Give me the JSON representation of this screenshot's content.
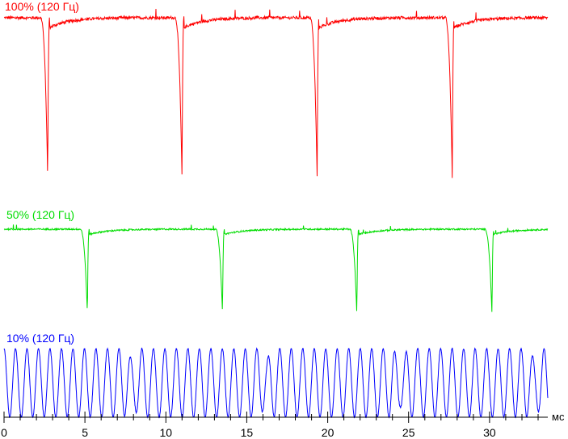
{
  "chart_data": {
    "type": "line",
    "xlabel": "мс",
    "xlim": [
      0,
      33.6
    ],
    "x_ticks": [
      0,
      5,
      10,
      15,
      20,
      25,
      30
    ],
    "grid": false,
    "legend": "none",
    "series": [
      {
        "name": "100% (120 Гц)",
        "color": "#ff0000",
        "baseline": 100,
        "min": 2,
        "pulse_times": [
          2.7,
          11.0,
          19.35,
          27.7
        ],
        "pulse_width": 0.45,
        "period": 8.33
      },
      {
        "name": "50% (120 Гц)",
        "color": "#00dd00",
        "baseline": 50,
        "min": 1,
        "pulse_times": [
          5.15,
          13.5,
          21.8,
          30.15
        ],
        "pulse_width": 0.45,
        "period": 8.33
      },
      {
        "name": "10% (120 Гц)",
        "color": "#0000ff",
        "baseline": 10,
        "min": 0,
        "oscillation_period": 0.71,
        "dip_times": [
          7.9,
          16.2,
          24.5,
          32.8
        ],
        "period": 8.33
      }
    ]
  }
}
